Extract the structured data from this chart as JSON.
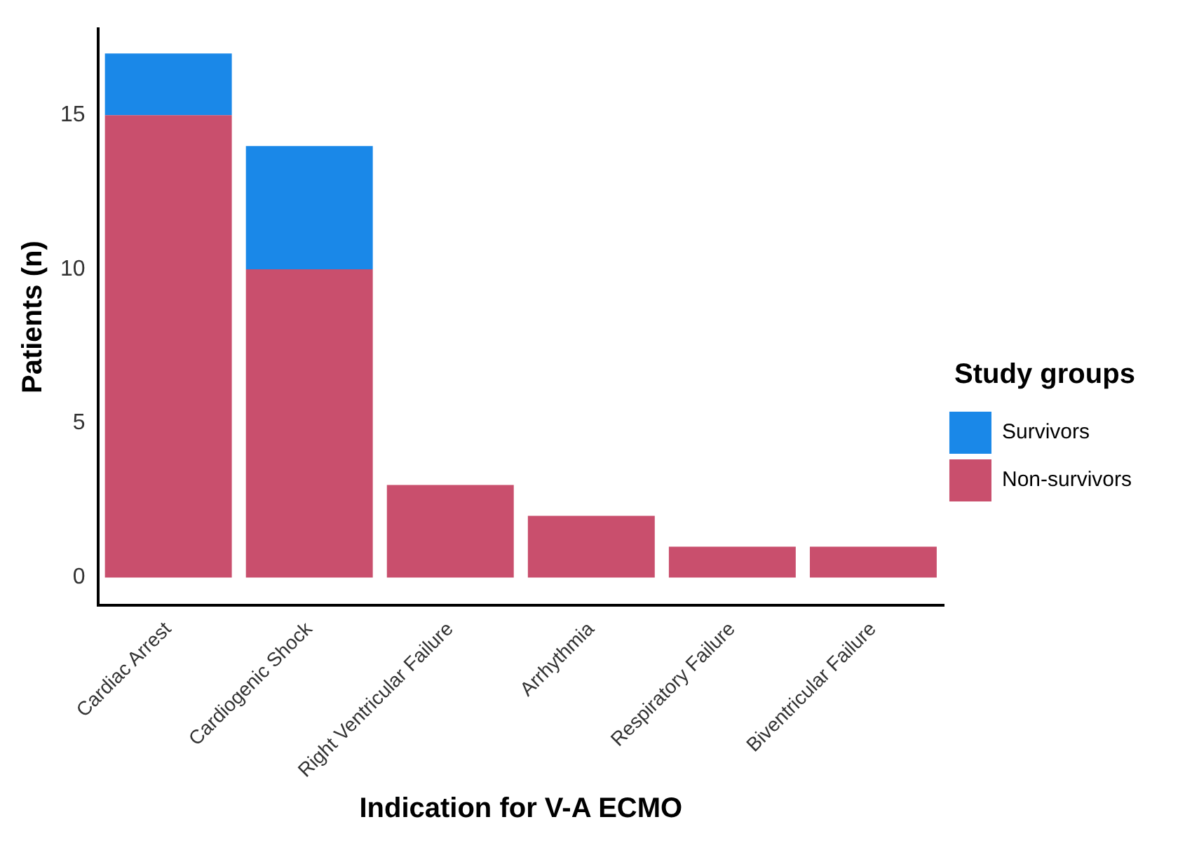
{
  "chart_data": {
    "type": "bar",
    "stacked": true,
    "xlabel": "Indication for V-A ECMO",
    "ylabel": "Patients (n)",
    "legend_title": "Study groups",
    "legend": "right",
    "grid": false,
    "categories": [
      "Cardiac Arrest",
      "Cardiogenic Shock",
      "Right Ventricular Failure",
      "Arrhythmia",
      "Respiratory Failure",
      "Biventricular Failure"
    ],
    "series": [
      {
        "name": "Non-survivors",
        "color": "#c94f6d",
        "values": [
          15,
          10,
          3,
          2,
          1,
          1
        ]
      },
      {
        "name": "Survivors",
        "color": "#1a88e8",
        "values": [
          2,
          4,
          0,
          0,
          0,
          0
        ]
      }
    ],
    "ylim": [
      -0.9,
      17.8
    ],
    "yticks": [
      0,
      5,
      10,
      15
    ]
  }
}
